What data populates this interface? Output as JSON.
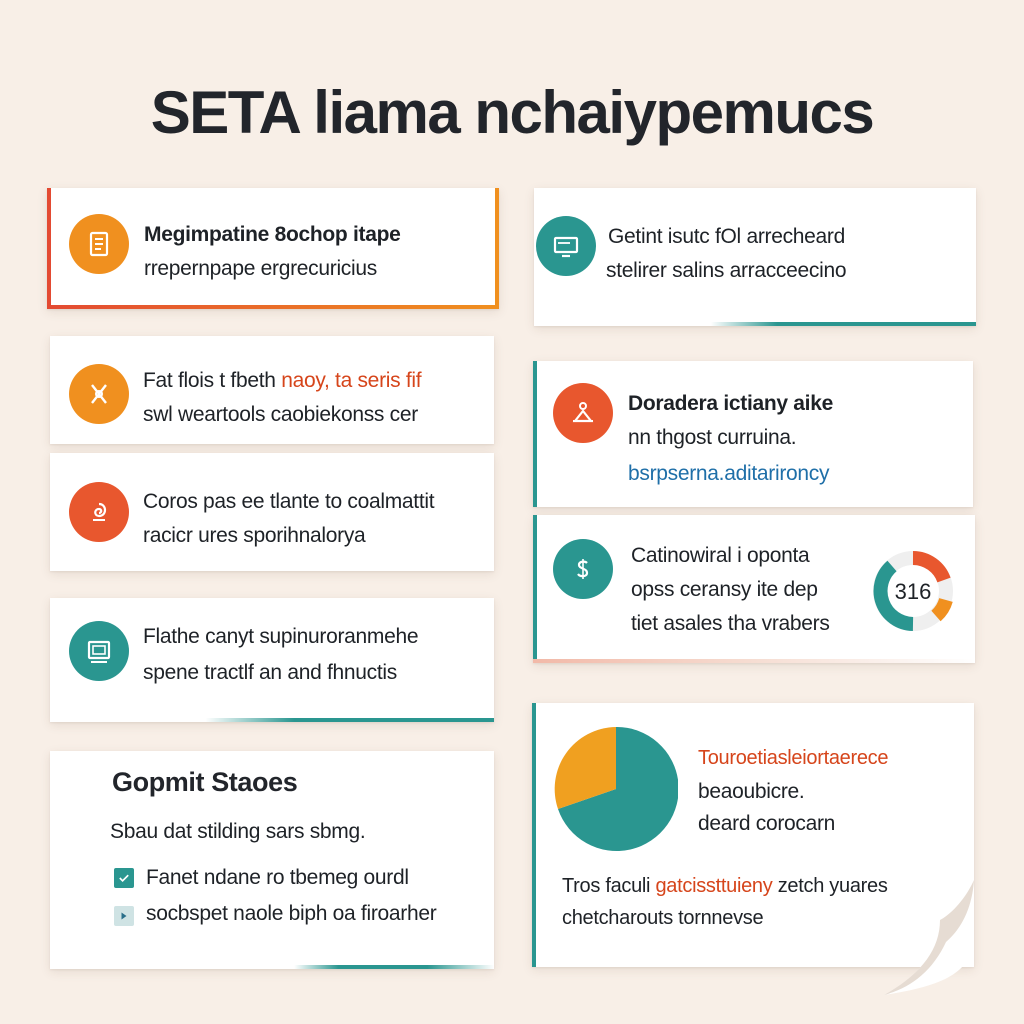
{
  "title": "SETA liama nchaiypemucs",
  "colors": {
    "orange": "#f0901f",
    "teal": "#2a9690",
    "red": "#e8572e",
    "link": "#1f6fa8",
    "highlight": "#d6451b"
  },
  "cards": {
    "c1": {
      "icon": "document-icon",
      "line1": "Megimpatine 8ochop itape",
      "line2": "rrepernpape ergrecuricius"
    },
    "c2": {
      "icon": "monitor-icon",
      "line1": "Getint isutc fOl arrecheard",
      "line2": "stelirer salins arracceecino"
    },
    "c3": {
      "icon": "tools-icon",
      "line1_a": "Fat flois t fbeth",
      "line1_b": "naoy, ta seris fif",
      "line2": "swl weartools caobiekonss cer"
    },
    "c4": {
      "icon": "puzzle-icon",
      "line1": "Doradera ictiany aike",
      "line2": "nn thgost curruina.",
      "link": "bsrpserna.aditarironcy"
    },
    "c5": {
      "icon": "swirl-icon",
      "line1": "Coros pas ee tlante to coalmattit",
      "line2": "racicr ures sporihnalorya"
    },
    "c6": {
      "icon": "dollar-icon",
      "line1": "Catinowiral i oponta",
      "line2": "opss ceransy ite dep",
      "line3": "tiet asales tha vrabers",
      "gauge_value": "316"
    },
    "c7": {
      "icon": "presentation-icon",
      "line1": "Flathe canyt supinuroranmehe",
      "line2": "spene tractlf an and fhnuctis"
    },
    "c8": {
      "title": "Gopmit Staoes",
      "subtitle": "Sbau dat stilding sars sbmg.",
      "items": [
        "Fanet ndane ro tbemeg ourdl",
        "socbspet naole biph oa firoarher"
      ]
    },
    "c9": {
      "legend_title": "Touroetiasleiortaerece",
      "legend_line2": "beaoubicre.",
      "legend_line3": "deard corocarn",
      "bottom_a": "Tros faculi",
      "bottom_b": "gatcissttuieny",
      "bottom_c": "zetch yuares",
      "bottom_line2": "chetcharouts tornnevse"
    }
  }
}
